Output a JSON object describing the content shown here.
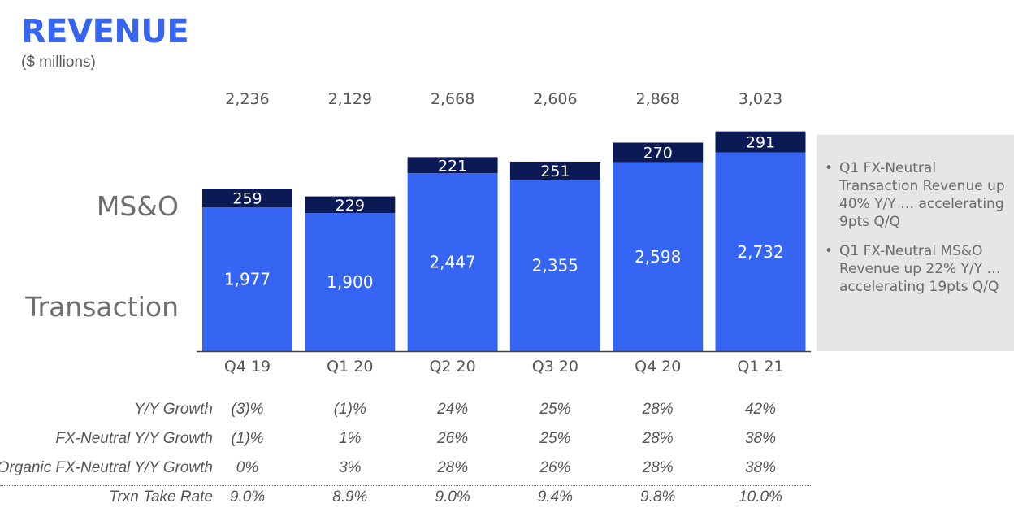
{
  "title": "REVENUE",
  "subtitle": "($ millions)",
  "chart_data": {
    "type": "bar",
    "stacked": true,
    "categories": [
      "Q4 19",
      "Q1 20",
      "Q2 20",
      "Q3 20",
      "Q4 20",
      "Q1 21"
    ],
    "series": [
      {
        "name": "Transaction",
        "values": [
          1977,
          1900,
          2447,
          2355,
          2598,
          2732
        ],
        "color": "#3565f2"
      },
      {
        "name": "MS&O",
        "values": [
          259,
          229,
          221,
          251,
          270,
          291
        ],
        "color": "#0b1a55"
      }
    ],
    "totals": [
      2236,
      2129,
      2668,
      2606,
      2868,
      3023
    ],
    "value_labels": {
      "Transaction": [
        "1,977",
        "1,900",
        "2,447",
        "2,355",
        "2,598",
        "2,732"
      ],
      "MS&O": [
        "259",
        "229",
        "221",
        "251",
        "270",
        "291"
      ],
      "totals": [
        "2,236",
        "2,129",
        "2,668",
        "2,606",
        "2,868",
        "3,023"
      ]
    },
    "ylim": [
      0,
      3100
    ],
    "grid": false,
    "legend": "left side labels"
  },
  "series_labels": {
    "mso": "MS&O",
    "transaction": "Transaction"
  },
  "callout": {
    "bullet": "•",
    "items": [
      "Q1 FX-Neutral Transaction Revenue up 40% Y/Y … accelerating 9pts Q/Q",
      "Q1 FX-Neutral MS&O Revenue up 22% Y/Y … accelerating 19pts Q/Q"
    ]
  },
  "metrics": [
    {
      "label": "Y/Y Growth",
      "values": [
        "(3)%",
        "(1)%",
        "24%",
        "25%",
        "28%",
        "42%"
      ]
    },
    {
      "label": "FX-Neutral Y/Y Growth",
      "values": [
        "(1)%",
        "1%",
        "26%",
        "25%",
        "28%",
        "38%"
      ]
    },
    {
      "label": "Organic FX-Neutral Y/Y Growth",
      "values": [
        "0%",
        "3%",
        "28%",
        "26%",
        "28%",
        "38%"
      ]
    },
    {
      "label": "Trxn Take Rate",
      "values": [
        "9.0%",
        "8.9%",
        "9.0%",
        "9.4%",
        "9.8%",
        "10.0%"
      ]
    }
  ]
}
